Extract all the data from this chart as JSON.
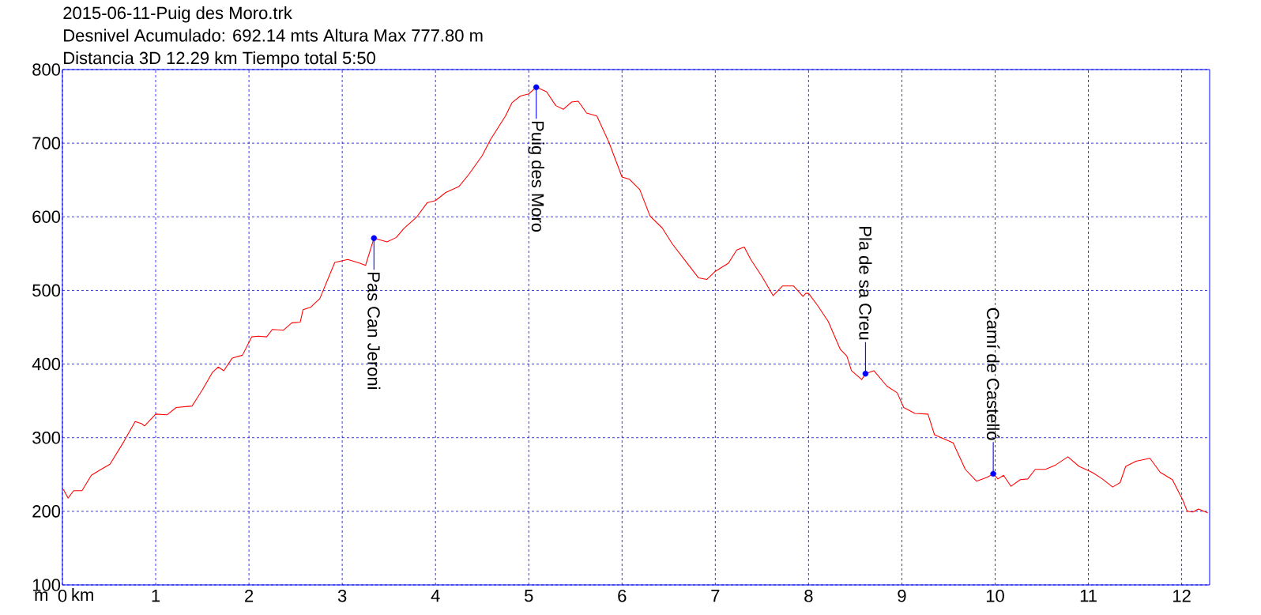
{
  "chart_data": {
    "type": "line",
    "title": "2015-06-11-Puig des Moro.trk",
    "subtitle": "Desnivel Acumulado: 692.14 mts  Altura Max 777.80 m",
    "annotations": [
      "Distancia 3D 12.29 km  Tiempo total 5:50",
      {
        "text": "Pas Can Jeroni",
        "x": 3.34,
        "y": 571
      },
      {
        "text": "Puig des Moro",
        "x": 5.08,
        "y": 776
      },
      {
        "text": "Pla de sa Creu",
        "x": 8.61,
        "y": 387
      },
      {
        "text": "Camí de Castelló",
        "x": 9.98,
        "y": 251
      }
    ],
    "xlabel": "km",
    "ylabel": "m",
    "color": "#ff0000",
    "grid": true,
    "xlim": [
      0,
      12.3
    ],
    "ylim": [
      100,
      800
    ],
    "xticks": [
      0,
      1,
      2,
      3,
      4,
      5,
      6,
      7,
      8,
      9,
      10,
      11,
      12
    ],
    "yticks": [
      100,
      200,
      300,
      400,
      500,
      600,
      700,
      800
    ],
    "x": [
      0.01,
      0.06,
      0.12,
      0.21,
      0.31,
      0.4,
      0.51,
      0.66,
      0.78,
      0.85,
      0.88,
      1.0,
      1.12,
      1.22,
      1.39,
      1.5,
      1.61,
      1.67,
      1.73,
      1.82,
      1.93,
      2.03,
      2.1,
      2.19,
      2.25,
      2.37,
      2.46,
      2.55,
      2.58,
      2.66,
      2.76,
      2.92,
      3.06,
      3.19,
      3.25,
      3.34,
      3.48,
      3.58,
      3.66,
      3.8,
      3.91,
      4.0,
      4.11,
      4.25,
      4.36,
      4.5,
      4.59,
      4.75,
      4.82,
      4.91,
      5.0,
      5.08,
      5.19,
      5.29,
      5.37,
      5.46,
      5.53,
      5.62,
      5.73,
      5.86,
      6.0,
      6.08,
      6.19,
      6.3,
      6.43,
      6.54,
      6.68,
      6.82,
      6.91,
      7.0,
      7.14,
      7.23,
      7.31,
      7.38,
      7.5,
      7.62,
      7.72,
      7.84,
      7.94,
      7.97,
      8.0,
      8.1,
      8.21,
      8.34,
      8.41,
      8.46,
      8.57,
      8.61,
      8.7,
      8.84,
      8.95,
      9.02,
      9.14,
      9.28,
      9.35,
      9.55,
      9.68,
      9.8,
      9.91,
      9.98,
      10.03,
      10.09,
      10.17,
      10.27,
      10.35,
      10.43,
      10.54,
      10.65,
      10.78,
      10.9,
      11.04,
      11.15,
      11.26,
      11.34,
      11.4,
      11.51,
      11.66,
      11.77,
      11.9,
      12.01,
      12.06,
      12.12,
      12.18,
      12.28
    ],
    "values": [
      230,
      218,
      228,
      228,
      249,
      256,
      264,
      295,
      322,
      319,
      316,
      332,
      331,
      341,
      343,
      365,
      389,
      396,
      391,
      408,
      412,
      437,
      438,
      437,
      447,
      446,
      456,
      457,
      474,
      477,
      489,
      538,
      542,
      537,
      534,
      571,
      566,
      572,
      584,
      600,
      619,
      622,
      633,
      641,
      658,
      683,
      705,
      737,
      755,
      764,
      767,
      776,
      770,
      751,
      746,
      756,
      757,
      741,
      737,
      701,
      654,
      651,
      637,
      601,
      585,
      563,
      540,
      517,
      515,
      526,
      537,
      555,
      559,
      542,
      519,
      493,
      506,
      506,
      492,
      496,
      496,
      479,
      458,
      420,
      411,
      391,
      379,
      387,
      391,
      370,
      361,
      341,
      333,
      332,
      304,
      293,
      257,
      241,
      246,
      251,
      244,
      249,
      234,
      243,
      244,
      257,
      257,
      263,
      274,
      261,
      253,
      244,
      233,
      239,
      261,
      268,
      272,
      253,
      243,
      216,
      200,
      199,
      203,
      198
    ]
  }
}
